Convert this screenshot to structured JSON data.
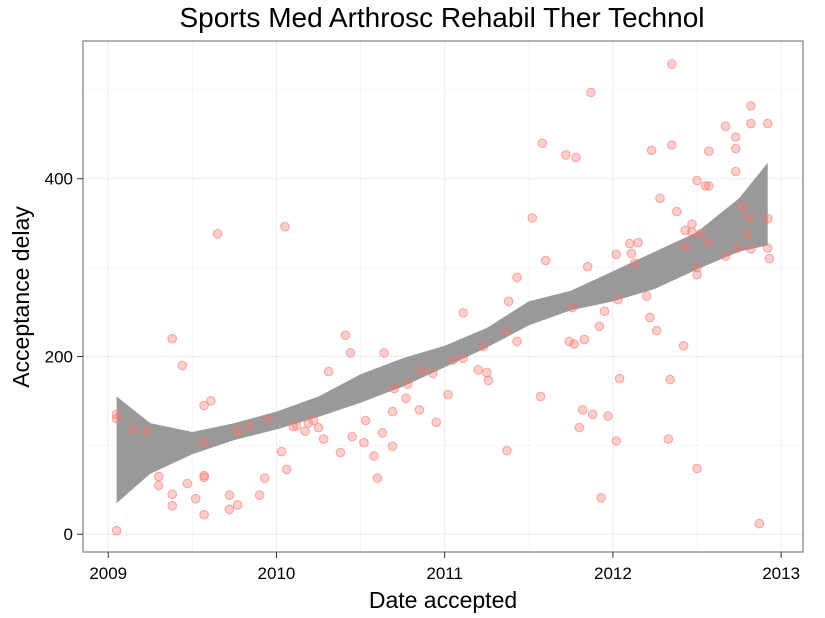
{
  "chart_data": {
    "type": "scatter",
    "title": "Sports Med Arthrosc Rehabil Ther Technol",
    "xlabel": "Date accepted",
    "ylabel": "Acceptance delay",
    "xlim": [
      2008.85,
      2013.13
    ],
    "ylim": [
      -20,
      555
    ],
    "x_ticks": [
      2009,
      2010,
      2011,
      2012,
      2013
    ],
    "y_ticks": [
      0,
      200,
      400
    ],
    "x_tick_labels": [
      "2009",
      "2010",
      "2011",
      "2012",
      "2013"
    ],
    "y_tick_labels": [
      "0",
      "200",
      "400"
    ],
    "grid": true,
    "legend": "none",
    "colors": {
      "points": "#f8766d",
      "ribbon": "#999999",
      "panel_border": "#7f7f7f",
      "grid": "#ebebeb"
    },
    "points": [
      [
        2009.05,
        4
      ],
      [
        2009.05,
        135
      ],
      [
        2009.05,
        130
      ],
      [
        2009.15,
        118
      ],
      [
        2009.23,
        116
      ],
      [
        2009.3,
        65
      ],
      [
        2009.3,
        55
      ],
      [
        2009.38,
        45
      ],
      [
        2009.38,
        32
      ],
      [
        2009.38,
        220
      ],
      [
        2009.44,
        190
      ],
      [
        2009.47,
        57
      ],
      [
        2009.52,
        40
      ],
      [
        2009.57,
        104
      ],
      [
        2009.57,
        66
      ],
      [
        2009.57,
        22
      ],
      [
        2009.57,
        64
      ],
      [
        2009.57,
        145
      ],
      [
        2009.61,
        150
      ],
      [
        2009.65,
        338
      ],
      [
        2009.72,
        28
      ],
      [
        2009.72,
        44
      ],
      [
        2009.77,
        33
      ],
      [
        2009.77,
        116
      ],
      [
        2009.84,
        122
      ],
      [
        2009.9,
        44
      ],
      [
        2009.93,
        63
      ],
      [
        2009.95,
        130
      ],
      [
        2010.03,
        93
      ],
      [
        2010.05,
        346
      ],
      [
        2010.06,
        73
      ],
      [
        2010.1,
        121
      ],
      [
        2010.12,
        122
      ],
      [
        2010.17,
        116
      ],
      [
        2010.19,
        125
      ],
      [
        2010.22,
        128
      ],
      [
        2010.25,
        120
      ],
      [
        2010.28,
        107
      ],
      [
        2010.31,
        183
      ],
      [
        2010.38,
        92
      ],
      [
        2010.41,
        224
      ],
      [
        2010.44,
        204
      ],
      [
        2010.45,
        110
      ],
      [
        2010.52,
        103
      ],
      [
        2010.53,
        128
      ],
      [
        2010.58,
        88
      ],
      [
        2010.6,
        63
      ],
      [
        2010.63,
        114
      ],
      [
        2010.64,
        204
      ],
      [
        2010.69,
        99
      ],
      [
        2010.69,
        138
      ],
      [
        2010.7,
        164
      ],
      [
        2010.77,
        153
      ],
      [
        2010.78,
        169
      ],
      [
        2010.85,
        140
      ],
      [
        2010.86,
        184
      ],
      [
        2010.93,
        181
      ],
      [
        2010.95,
        126
      ],
      [
        2011.02,
        157
      ],
      [
        2011.05,
        196
      ],
      [
        2011.11,
        198
      ],
      [
        2011.11,
        249
      ],
      [
        2011.2,
        185
      ],
      [
        2011.23,
        211
      ],
      [
        2011.25,
        182
      ],
      [
        2011.26,
        173
      ],
      [
        2011.36,
        228
      ],
      [
        2011.37,
        94
      ],
      [
        2011.38,
        262
      ],
      [
        2011.43,
        217
      ],
      [
        2011.43,
        289
      ],
      [
        2011.52,
        356
      ],
      [
        2011.57,
        155
      ],
      [
        2011.58,
        440
      ],
      [
        2011.6,
        308
      ],
      [
        2011.72,
        427
      ],
      [
        2011.74,
        217
      ],
      [
        2011.76,
        255
      ],
      [
        2011.77,
        214
      ],
      [
        2011.78,
        424
      ],
      [
        2011.8,
        120
      ],
      [
        2011.82,
        140
      ],
      [
        2011.83,
        219
      ],
      [
        2011.85,
        301
      ],
      [
        2011.87,
        497
      ],
      [
        2011.88,
        135
      ],
      [
        2011.92,
        234
      ],
      [
        2011.93,
        41
      ],
      [
        2011.95,
        251
      ],
      [
        2011.97,
        133
      ],
      [
        2012.02,
        315
      ],
      [
        2012.02,
        105
      ],
      [
        2012.03,
        264
      ],
      [
        2012.04,
        175
      ],
      [
        2012.1,
        327
      ],
      [
        2012.11,
        316
      ],
      [
        2012.13,
        305
      ],
      [
        2012.15,
        328
      ],
      [
        2012.2,
        268
      ],
      [
        2012.22,
        244
      ],
      [
        2012.23,
        432
      ],
      [
        2012.26,
        229
      ],
      [
        2012.28,
        378
      ],
      [
        2012.33,
        107
      ],
      [
        2012.34,
        174
      ],
      [
        2012.35,
        438
      ],
      [
        2012.35,
        529
      ],
      [
        2012.38,
        363
      ],
      [
        2012.42,
        212
      ],
      [
        2012.43,
        324
      ],
      [
        2012.43,
        342
      ],
      [
        2012.47,
        349
      ],
      [
        2012.47,
        340
      ],
      [
        2012.5,
        74
      ],
      [
        2012.5,
        292
      ],
      [
        2012.5,
        300
      ],
      [
        2012.5,
        398
      ],
      [
        2012.52,
        338
      ],
      [
        2012.55,
        392
      ],
      [
        2012.57,
        431
      ],
      [
        2012.57,
        392
      ],
      [
        2012.57,
        328
      ],
      [
        2012.67,
        313
      ],
      [
        2012.67,
        459
      ],
      [
        2012.73,
        447
      ],
      [
        2012.73,
        434
      ],
      [
        2012.73,
        408
      ],
      [
        2012.74,
        322
      ],
      [
        2012.77,
        369
      ],
      [
        2012.8,
        338
      ],
      [
        2012.81,
        357
      ],
      [
        2012.82,
        482
      ],
      [
        2012.82,
        462
      ],
      [
        2012.82,
        321
      ],
      [
        2012.87,
        12
      ],
      [
        2012.92,
        462
      ],
      [
        2012.92,
        355
      ],
      [
        2012.92,
        322
      ],
      [
        2012.93,
        310
      ]
    ],
    "smooth_band": {
      "x": [
        2009.05,
        2009.25,
        2009.5,
        2009.75,
        2010.0,
        2010.25,
        2010.5,
        2010.75,
        2011.0,
        2011.25,
        2011.5,
        2011.75,
        2012.0,
        2012.25,
        2012.5,
        2012.75,
        2012.92
      ],
      "lower": [
        35,
        68,
        90,
        106,
        118,
        132,
        148,
        166,
        188,
        210,
        235,
        252,
        262,
        276,
        298,
        318,
        325
      ],
      "upper": [
        155,
        125,
        115,
        125,
        138,
        155,
        180,
        198,
        212,
        232,
        262,
        274,
        296,
        318,
        340,
        378,
        418
      ]
    }
  }
}
